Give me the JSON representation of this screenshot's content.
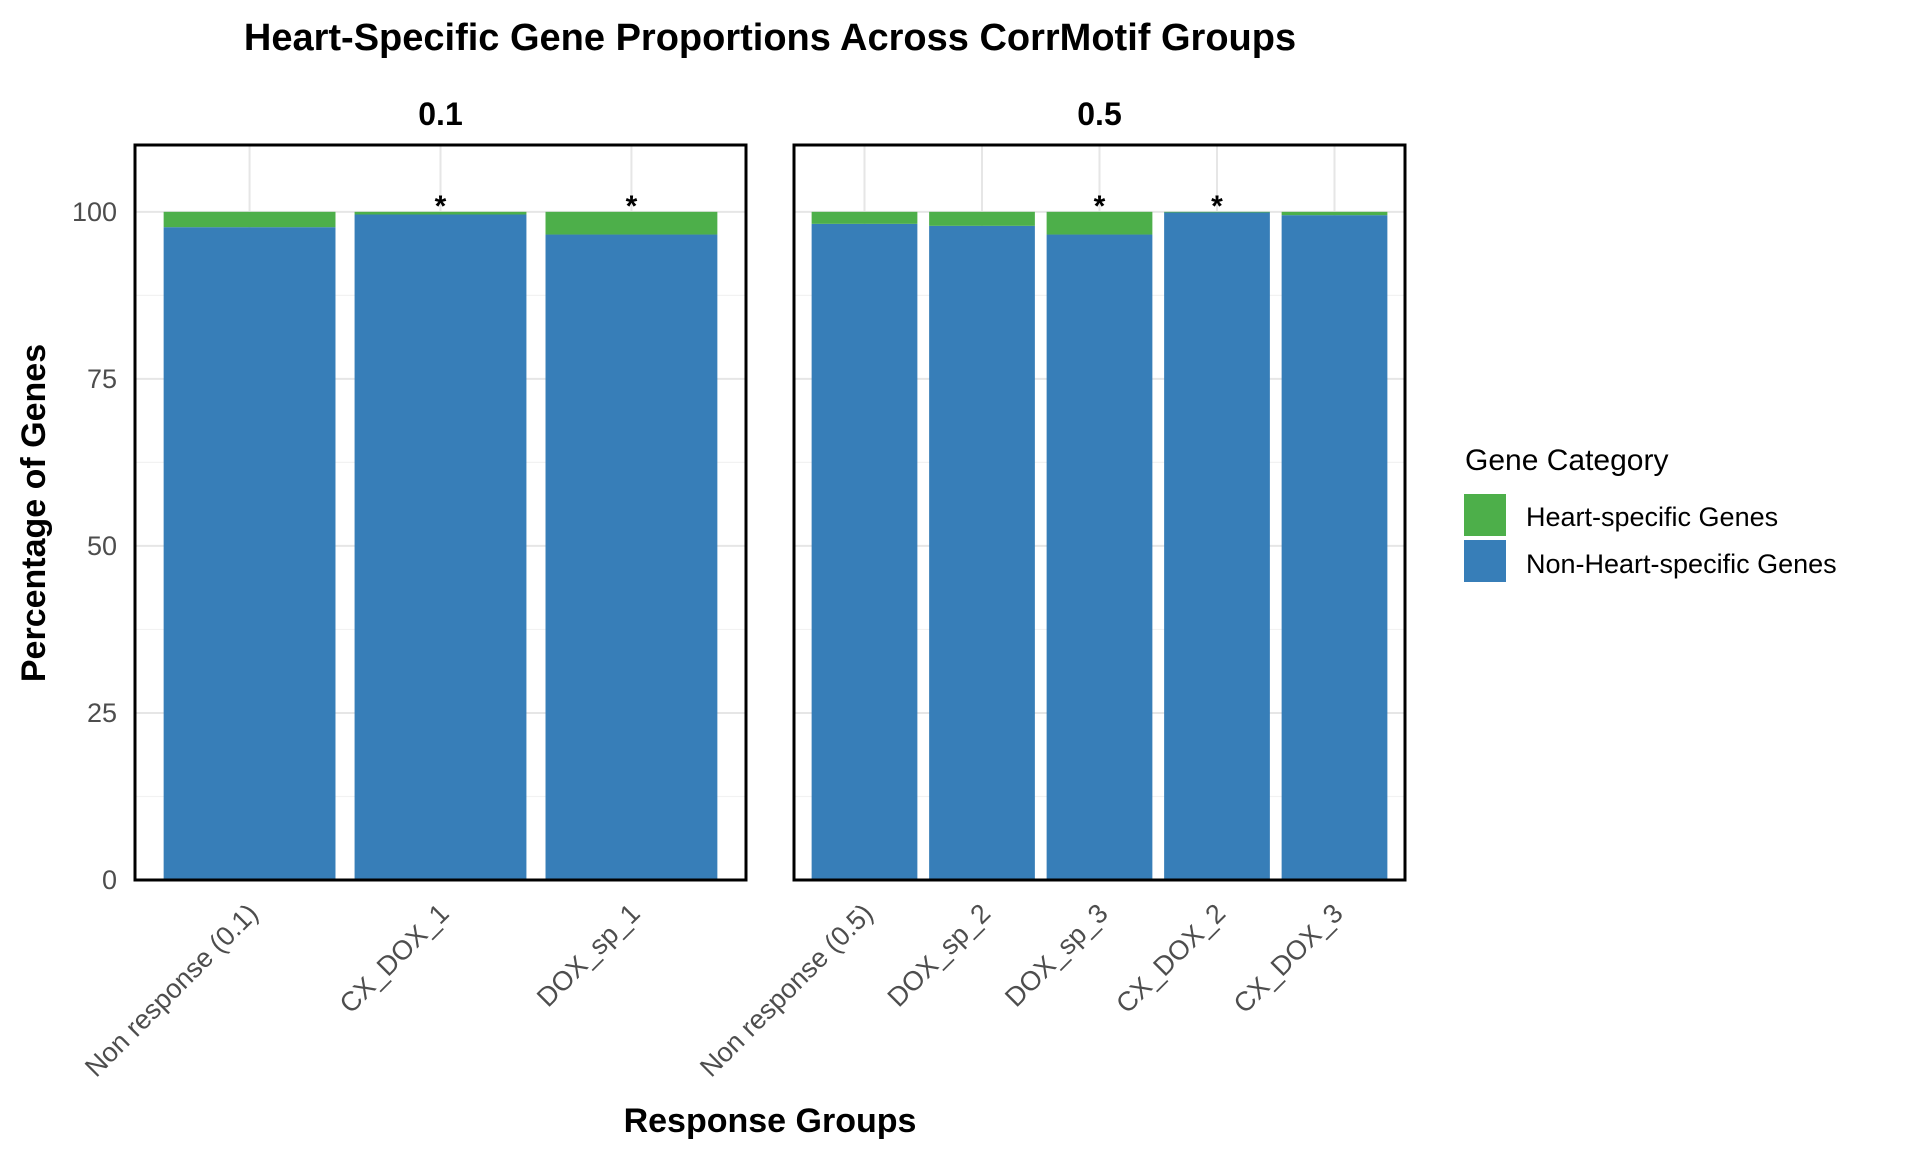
{
  "chart_data": {
    "type": "bar",
    "stacked": true,
    "title": "Heart-Specific Gene Proportions Across CorrMotif Groups",
    "xlabel": "Response Groups",
    "ylabel": "Percentage of Genes",
    "ylim": [
      0,
      110
    ],
    "yticks": [
      0,
      25,
      50,
      75,
      100
    ],
    "grid": true,
    "legend": {
      "title": "Gene Category",
      "position": "right",
      "entries": [
        {
          "name": "Heart-specific Genes",
          "color": "#4DAF4A"
        },
        {
          "name": "Non-Heart-specific Genes",
          "color": "#377EB8"
        }
      ]
    },
    "panels": [
      {
        "label": "0.1",
        "categories": [
          "Non response (0.1)",
          "CX_DOX_1",
          "DOX_sp_1"
        ],
        "series": [
          {
            "name": "Non-Heart-specific Genes",
            "values": [
              97.7,
              99.6,
              96.6
            ]
          },
          {
            "name": "Heart-specific Genes",
            "values": [
              2.3,
              0.4,
              3.4
            ]
          }
        ],
        "significant": [
          "",
          "*",
          "*"
        ]
      },
      {
        "label": "0.5",
        "categories": [
          "Non response (0.5)",
          "DOX_sp_2",
          "DOX_sp_3",
          "CX_DOX_2",
          "CX_DOX_3"
        ],
        "series": [
          {
            "name": "Non-Heart-specific Genes",
            "values": [
              98.2,
              97.9,
              96.6,
              99.9,
              99.5
            ]
          },
          {
            "name": "Heart-specific Genes",
            "values": [
              1.8,
              2.1,
              3.4,
              0.1,
              0.5
            ]
          }
        ],
        "significant": [
          "",
          "",
          "*",
          "*",
          ""
        ]
      }
    ]
  }
}
